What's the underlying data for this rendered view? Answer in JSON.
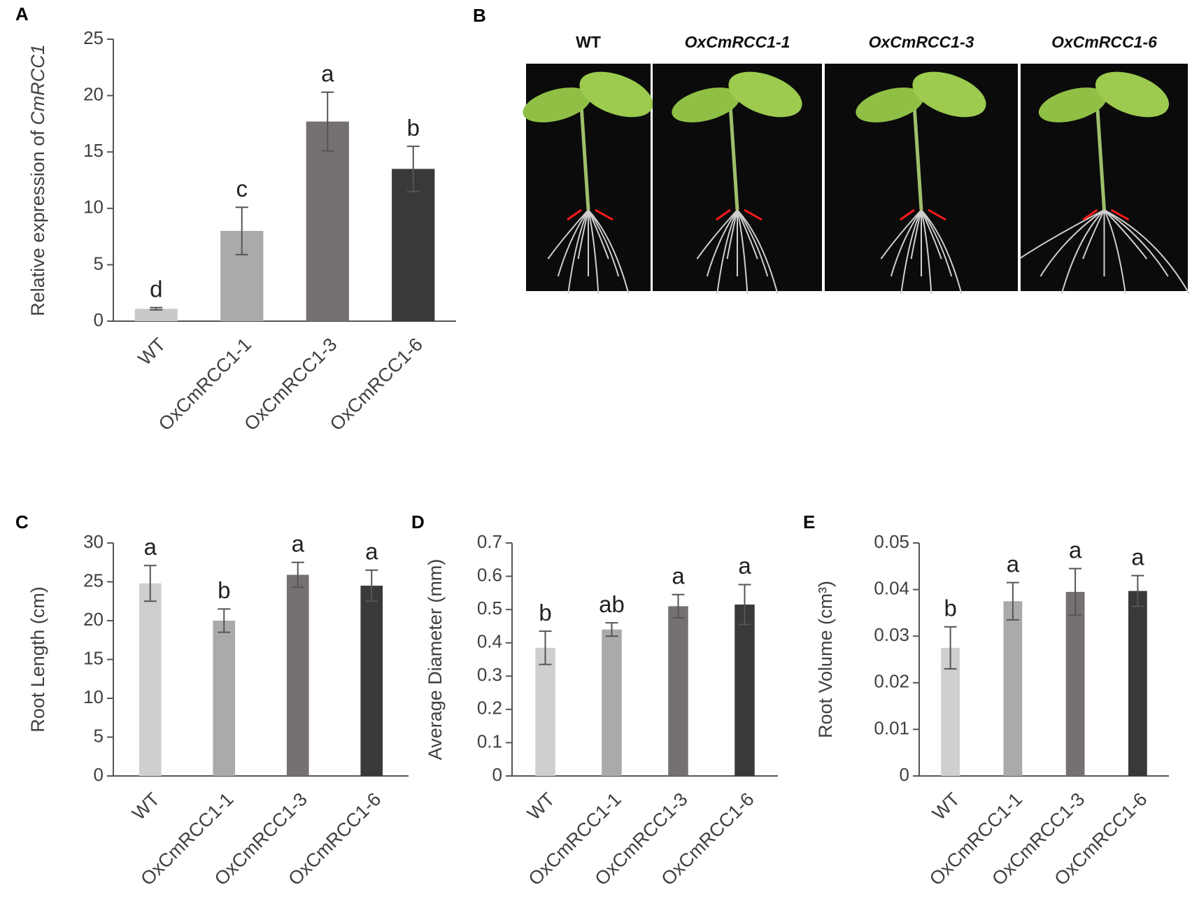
{
  "chart_data": [
    {
      "type": "bar",
      "panel": "A",
      "ylabel": "Relative expression of ",
      "ylabel_italic": "CmRCC1",
      "categories": [
        "WT",
        "OxCmRCC1-1",
        "OxCmRCC1-3",
        "OxCmRCC1-6"
      ],
      "values": [
        1.1,
        8.0,
        17.7,
        13.5
      ],
      "errors": [
        0.1,
        2.1,
        2.6,
        2.0
      ],
      "letters": [
        "d",
        "c",
        "a",
        "b"
      ],
      "colors": [
        "#c9c9c9",
        "#aaaaaa",
        "#767171",
        "#3b3838"
      ],
      "ylim": [
        0,
        25
      ],
      "yticks": [
        0,
        5,
        10,
        15,
        20,
        25
      ]
    },
    {
      "type": "bar",
      "panel": "C",
      "ylabel": "Root Length (cm)",
      "categories": [
        "WT",
        "OxCmRCC1-1",
        "OxCmRCC1-3",
        "OxCmRCC1-6"
      ],
      "values": [
        24.8,
        20.0,
        25.9,
        24.5
      ],
      "errors": [
        2.3,
        1.5,
        1.6,
        2.0
      ],
      "letters": [
        "a",
        "b",
        "a",
        "a"
      ],
      "colors": [
        "#d0cece",
        "#aaaaaa",
        "#767171",
        "#3b3838"
      ],
      "ylim": [
        0,
        30
      ],
      "yticks": [
        0,
        5,
        10,
        15,
        20,
        25,
        30
      ]
    },
    {
      "type": "bar",
      "panel": "D",
      "ylabel": "Average Diameter (mm)",
      "categories": [
        "WT",
        "OxCmRCC1-1",
        "OxCmRCC1-3",
        "OxCmRCC1-6"
      ],
      "values": [
        0.385,
        0.44,
        0.51,
        0.515
      ],
      "errors": [
        0.05,
        0.02,
        0.035,
        0.06
      ],
      "letters": [
        "b",
        "ab",
        "a",
        "a"
      ],
      "colors": [
        "#d0cece",
        "#aaaaaa",
        "#767171",
        "#3b3838"
      ],
      "ylim": [
        0,
        0.7
      ],
      "yticks": [
        0,
        0.1,
        0.2,
        0.3,
        0.4,
        0.5,
        0.6,
        0.7
      ]
    },
    {
      "type": "bar",
      "panel": "E",
      "ylabel": "Root Volume (cm³)",
      "categories": [
        "WT",
        "OxCmRCC1-1",
        "OxCmRCC1-3",
        "OxCmRCC1-6"
      ],
      "values": [
        0.0275,
        0.0375,
        0.0395,
        0.0397
      ],
      "errors": [
        0.0045,
        0.004,
        0.005,
        0.0033
      ],
      "letters": [
        "b",
        "a",
        "a",
        "a"
      ],
      "colors": [
        "#d0cece",
        "#aaaaaa",
        "#767171",
        "#3b3838"
      ],
      "ylim": [
        0,
        0.05
      ],
      "yticks": [
        0,
        0.01,
        0.02,
        0.03,
        0.04,
        0.05
      ]
    }
  ],
  "photo_panel": {
    "panel": "B",
    "captions": [
      "WT",
      "OxCmRCC1-1",
      "OxCmRCC1-3",
      "OxCmRCC1-6"
    ]
  }
}
